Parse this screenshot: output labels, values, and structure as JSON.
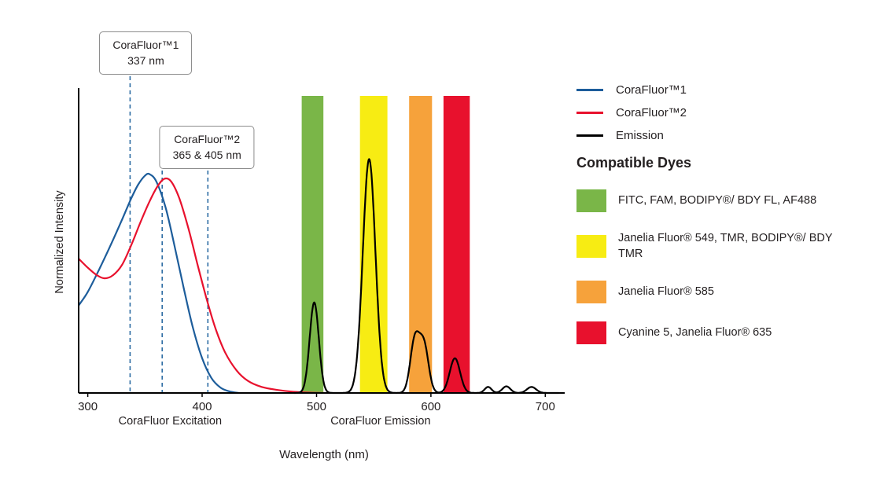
{
  "figure": {
    "background": "#ffffff",
    "text_color": "#231f20"
  },
  "chart_data": {
    "type": "line",
    "title": "",
    "xlabel": "Wavelength (nm)",
    "ylabel": "Normalized Intensity",
    "xlim": [
      292,
      717
    ],
    "ylim": [
      0,
      1
    ],
    "x_ticks": [
      300,
      400,
      500,
      600,
      700
    ],
    "grid": false,
    "legend_position": "right",
    "axis_color": "#000000",
    "dashed_line_color": "#2e6da4",
    "section_labels": [
      {
        "text": "CoraFluor Excitation",
        "x_nm": 372
      },
      {
        "text": "CoraFluor Emission",
        "x_nm": 556
      }
    ],
    "callouts": [
      {
        "title": "CoraFluor™1",
        "subtitle": "337 nm",
        "lines_nm": [
          337
        ]
      },
      {
        "title": "CoraFluor™2",
        "subtitle": "365 & 405 nm",
        "lines_nm": [
          365,
          405
        ]
      }
    ],
    "bands": [
      {
        "dyes": "FITC, FAM, BODIPY®/ BDY FL, AF488",
        "color": "#7ab648",
        "from_nm": 487,
        "to_nm": 506
      },
      {
        "dyes": "Janelia Fluor® 549, TMR, BODIPY®/ BDY TMR",
        "color": "#f7ec13",
        "from_nm": 538,
        "to_nm": 562
      },
      {
        "dyes": "Janelia Fluor® 585",
        "color": "#f6a23b",
        "from_nm": 581,
        "to_nm": 601
      },
      {
        "dyes": "Cyanine 5, Janelia Fluor® 635",
        "color": "#e8112d",
        "from_nm": 611,
        "to_nm": 634
      }
    ],
    "series": [
      {
        "name": "CoraFluor™1",
        "kind": "excitation",
        "color": "#1d5d9b",
        "points": [
          [
            292,
            0.29
          ],
          [
            300,
            0.335
          ],
          [
            310,
            0.41
          ],
          [
            320,
            0.49
          ],
          [
            330,
            0.575
          ],
          [
            338,
            0.645
          ],
          [
            344,
            0.69
          ],
          [
            350,
            0.72
          ],
          [
            354,
            0.725
          ],
          [
            360,
            0.7
          ],
          [
            368,
            0.615
          ],
          [
            376,
            0.485
          ],
          [
            384,
            0.345
          ],
          [
            392,
            0.215
          ],
          [
            400,
            0.115
          ],
          [
            408,
            0.05
          ],
          [
            416,
            0.018
          ],
          [
            424,
            0.005
          ],
          [
            432,
            0
          ]
        ]
      },
      {
        "name": "CoraFluor™2",
        "kind": "excitation",
        "color": "#e8112d",
        "points": [
          [
            292,
            0.445
          ],
          [
            300,
            0.415
          ],
          [
            308,
            0.39
          ],
          [
            315,
            0.38
          ],
          [
            322,
            0.39
          ],
          [
            330,
            0.425
          ],
          [
            338,
            0.49
          ],
          [
            346,
            0.565
          ],
          [
            354,
            0.635
          ],
          [
            361,
            0.685
          ],
          [
            367,
            0.71
          ],
          [
            373,
            0.7
          ],
          [
            380,
            0.645
          ],
          [
            388,
            0.545
          ],
          [
            396,
            0.425
          ],
          [
            404,
            0.31
          ],
          [
            412,
            0.21
          ],
          [
            420,
            0.135
          ],
          [
            430,
            0.075
          ],
          [
            440,
            0.04
          ],
          [
            452,
            0.02
          ],
          [
            466,
            0.01
          ],
          [
            480,
            0.004
          ],
          [
            495,
            0.001
          ],
          [
            508,
            0
          ]
        ]
      },
      {
        "name": "Emission",
        "kind": "emission",
        "color": "#000000",
        "peaks": [
          {
            "center_nm": 498,
            "height": 0.3,
            "sigma_nm": 4
          },
          {
            "center_nm": 546,
            "height": 0.775,
            "sigma_nm": 5.5
          },
          {
            "center_nm": 586,
            "height": 0.175,
            "sigma_nm": 4
          },
          {
            "center_nm": 594,
            "height": 0.155,
            "sigma_nm": 4
          },
          {
            "center_nm": 621,
            "height": 0.115,
            "sigma_nm": 4.5
          },
          {
            "center_nm": 650,
            "height": 0.02,
            "sigma_nm": 3
          },
          {
            "center_nm": 666,
            "height": 0.022,
            "sigma_nm": 3.5
          },
          {
            "center_nm": 688,
            "height": 0.02,
            "sigma_nm": 4
          }
        ]
      }
    ]
  },
  "legend": {
    "items": [
      {
        "label": "CoraFluor™1",
        "color": "#1d5d9b"
      },
      {
        "label": "CoraFluor™2",
        "color": "#e8112d"
      },
      {
        "label": "Emission",
        "color": "#000000"
      }
    ],
    "dyes_heading": "Compatible Dyes"
  }
}
